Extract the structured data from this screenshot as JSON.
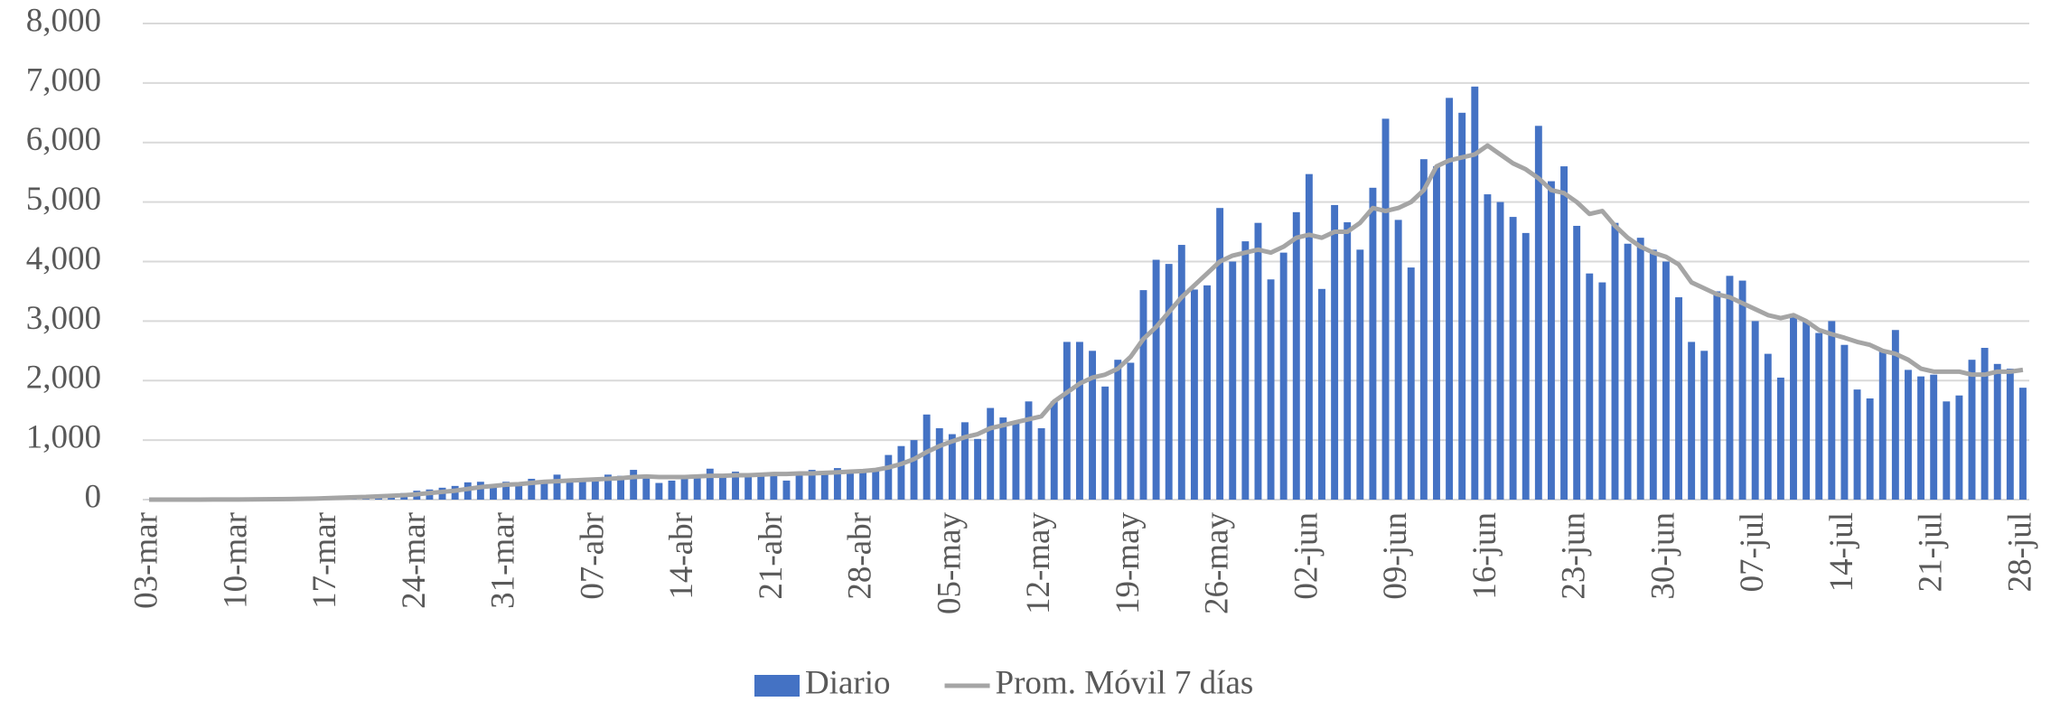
{
  "chart_data": {
    "type": "bar_line",
    "categories": [
      "03-mar",
      null,
      null,
      null,
      null,
      null,
      null,
      "10-mar",
      null,
      null,
      null,
      null,
      null,
      null,
      "17-mar",
      null,
      null,
      null,
      null,
      null,
      null,
      "24-mar",
      null,
      null,
      null,
      null,
      null,
      null,
      "31-mar",
      null,
      null,
      null,
      null,
      null,
      null,
      "07-abr",
      null,
      null,
      null,
      null,
      null,
      null,
      "14-abr",
      null,
      null,
      null,
      null,
      null,
      null,
      "21-abr",
      null,
      null,
      null,
      null,
      null,
      null,
      "28-abr",
      null,
      null,
      null,
      null,
      null,
      null,
      "05-may",
      null,
      null,
      null,
      null,
      null,
      null,
      "12-may",
      null,
      null,
      null,
      null,
      null,
      null,
      "19-may",
      null,
      null,
      null,
      null,
      null,
      null,
      "26-may",
      null,
      null,
      null,
      null,
      null,
      null,
      "02-jun",
      null,
      null,
      null,
      null,
      null,
      null,
      "09-jun",
      null,
      null,
      null,
      null,
      null,
      null,
      "16-jun",
      null,
      null,
      null,
      null,
      null,
      null,
      "23-jun",
      null,
      null,
      null,
      null,
      null,
      null,
      "30-jun",
      null,
      null,
      null,
      null,
      null,
      null,
      "07-jul",
      null,
      null,
      null,
      null,
      null,
      null,
      "14-jul",
      null,
      null,
      null,
      null,
      null,
      null,
      "21-jul",
      null,
      null,
      null,
      null,
      null,
      null,
      "28-jul"
    ],
    "series": [
      {
        "name": "Diario",
        "type": "bar",
        "color": "#4472c4",
        "values": [
          1,
          1,
          1,
          2,
          3,
          5,
          6,
          8,
          10,
          12,
          15,
          20,
          25,
          30,
          40,
          60,
          70,
          50,
          80,
          90,
          110,
          150,
          170,
          200,
          230,
          290,
          300,
          250,
          300,
          280,
          350,
          320,
          420,
          340,
          300,
          350,
          420,
          400,
          500,
          380,
          280,
          320,
          380,
          400,
          520,
          400,
          470,
          380,
          420,
          450,
          320,
          430,
          500,
          480,
          530,
          450,
          480,
          520,
          750,
          900,
          1000,
          1430,
          1200,
          1100,
          1300,
          1020,
          1540,
          1380,
          1300,
          1650,
          1200,
          1650,
          2650,
          2650,
          2500,
          1900,
          2350,
          2300,
          3520,
          4030,
          3960,
          4280,
          3530,
          3600,
          4900,
          4000,
          4340,
          4650,
          3700,
          4150,
          4830,
          5470,
          3540,
          4950,
          4660,
          4200,
          5240,
          6400,
          4700,
          3900,
          5720,
          5600,
          6750,
          6500,
          6940,
          5130,
          5000,
          4750,
          4480,
          6280,
          5350,
          5600,
          4600,
          3800,
          3650,
          4650,
          4300,
          4400,
          4200,
          4000,
          3400,
          2650,
          2500,
          3500,
          3760,
          3680,
          3000,
          2450,
          2050,
          3100,
          3000,
          2800,
          3000,
          2600,
          1850,
          1700,
          2500,
          2850,
          2180,
          2070,
          2100,
          1650,
          1750,
          2350,
          2550,
          2280,
          2200,
          1880
        ]
      },
      {
        "name": "Prom. Móvil 7 días",
        "type": "line",
        "color": "#a5a5a5",
        "values": [
          0,
          0,
          0,
          0,
          0,
          1,
          1,
          2,
          3,
          5,
          7,
          10,
          13,
          17,
          25,
          32,
          40,
          45,
          55,
          65,
          75,
          90,
          110,
          130,
          150,
          180,
          210,
          230,
          250,
          260,
          280,
          300,
          310,
          320,
          330,
          340,
          350,
          360,
          380,
          390,
          380,
          380,
          380,
          390,
          400,
          400,
          410,
          410,
          420,
          430,
          430,
          440,
          440,
          450,
          460,
          470,
          480,
          500,
          540,
          600,
          680,
          800,
          900,
          980,
          1050,
          1100,
          1200,
          1250,
          1300,
          1350,
          1400,
          1650,
          1800,
          1950,
          2050,
          2100,
          2200,
          2400,
          2700,
          2900,
          3150,
          3400,
          3600,
          3800,
          4000,
          4100,
          4150,
          4200,
          4150,
          4250,
          4400,
          4450,
          4400,
          4500,
          4500,
          4650,
          4900,
          4850,
          4900,
          5000,
          5200,
          5600,
          5700,
          5750,
          5800,
          5950,
          5800,
          5650,
          5550,
          5400,
          5200,
          5150,
          5000,
          4800,
          4850,
          4600,
          4400,
          4250,
          4150,
          4080,
          3950,
          3650,
          3550,
          3450,
          3400,
          3300,
          3200,
          3100,
          3050,
          3100,
          3000,
          2850,
          2780,
          2720,
          2650,
          2600,
          2500,
          2450,
          2350,
          2200,
          2150,
          2150,
          2150,
          2100,
          2100,
          2150,
          2150,
          2180
        ]
      }
    ],
    "ylim": [
      0,
      8000
    ],
    "yticks": [
      0,
      {
        "value": 1000,
        "label": "1,000"
      },
      {
        "value": 2000,
        "label": "2,000"
      },
      {
        "value": 3000,
        "label": "3,000"
      },
      {
        "value": 4000,
        "label": "4,000"
      },
      {
        "value": 5000,
        "label": "5,000"
      },
      {
        "value": 6000,
        "label": "6,000"
      },
      {
        "value": 7000,
        "label": "7,000"
      },
      {
        "value": 8000,
        "label": "8,000"
      }
    ],
    "grid": true,
    "legend": "bottom"
  }
}
